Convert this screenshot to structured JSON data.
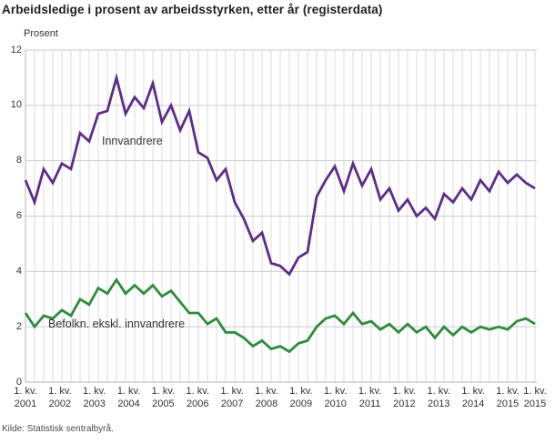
{
  "title": "Arbeidsledige i prosent av arbeidsstyrken, etter år (registerdata)",
  "y_axis_title": "Prosent",
  "source": "Kilde: Statistisk sentralbyrå.",
  "colors": {
    "innvandrere": "#5f2c87",
    "befolkning": "#2e8b3d",
    "grid_vertical": "#dedede",
    "grid_horizontal": "#cccccc",
    "axis": "#b5b5b5",
    "text": "#333333"
  },
  "chart_data": {
    "type": "line",
    "title": "Arbeidsledige i prosent av arbeidsstyrken, etter år (registerdata)",
    "ylabel": "Prosent",
    "ylim": [
      0,
      12
    ],
    "y_ticks": [
      0,
      2,
      4,
      6,
      8,
      10,
      12
    ],
    "grid": true,
    "x_unit": "quarter",
    "x_range": [
      "2001 Q1",
      "2015 Q1"
    ],
    "x_tick_prefix": "1. kv.",
    "x_tick_years": [
      "2001",
      "2002",
      "2003",
      "2004",
      "2005",
      "2006",
      "2007",
      "2008",
      "2009",
      "2010",
      "2011",
      "2012",
      "2013",
      "2014",
      "2015",
      "2015"
    ],
    "legend_position": "inline-labels",
    "series": [
      {
        "name": "Innvandrere",
        "color": "#5f2c87",
        "values": [
          7.3,
          6.5,
          7.7,
          7.2,
          7.9,
          7.7,
          9.0,
          8.7,
          9.7,
          9.8,
          11.0,
          9.7,
          10.3,
          9.9,
          10.8,
          9.4,
          10.0,
          9.1,
          9.8,
          8.3,
          8.1,
          7.3,
          7.7,
          6.5,
          5.9,
          5.1,
          5.4,
          4.3,
          4.2,
          3.9,
          4.5,
          4.7,
          6.7,
          7.3,
          7.8,
          6.9,
          7.9,
          7.1,
          7.7,
          6.6,
          7.0,
          6.2,
          6.6,
          6.0,
          6.3,
          5.9,
          6.8,
          6.5,
          7.0,
          6.6,
          7.3,
          6.9,
          7.6,
          7.2,
          7.5,
          7.2,
          7.0
        ]
      },
      {
        "name": "Befolkn. ekskl. innvandrere",
        "color": "#2e8b3d",
        "values": [
          2.5,
          2.0,
          2.4,
          2.3,
          2.6,
          2.4,
          3.0,
          2.8,
          3.4,
          3.2,
          3.7,
          3.2,
          3.5,
          3.2,
          3.5,
          3.1,
          3.3,
          2.9,
          2.5,
          2.5,
          2.1,
          2.3,
          1.8,
          1.8,
          1.6,
          1.3,
          1.5,
          1.2,
          1.3,
          1.1,
          1.4,
          1.5,
          2.0,
          2.3,
          2.4,
          2.1,
          2.5,
          2.1,
          2.2,
          1.9,
          2.1,
          1.8,
          2.1,
          1.8,
          2.0,
          1.6,
          2.0,
          1.7,
          2.0,
          1.8,
          2.0,
          1.9,
          2.0,
          1.9,
          2.2,
          2.3,
          2.1
        ]
      }
    ]
  }
}
